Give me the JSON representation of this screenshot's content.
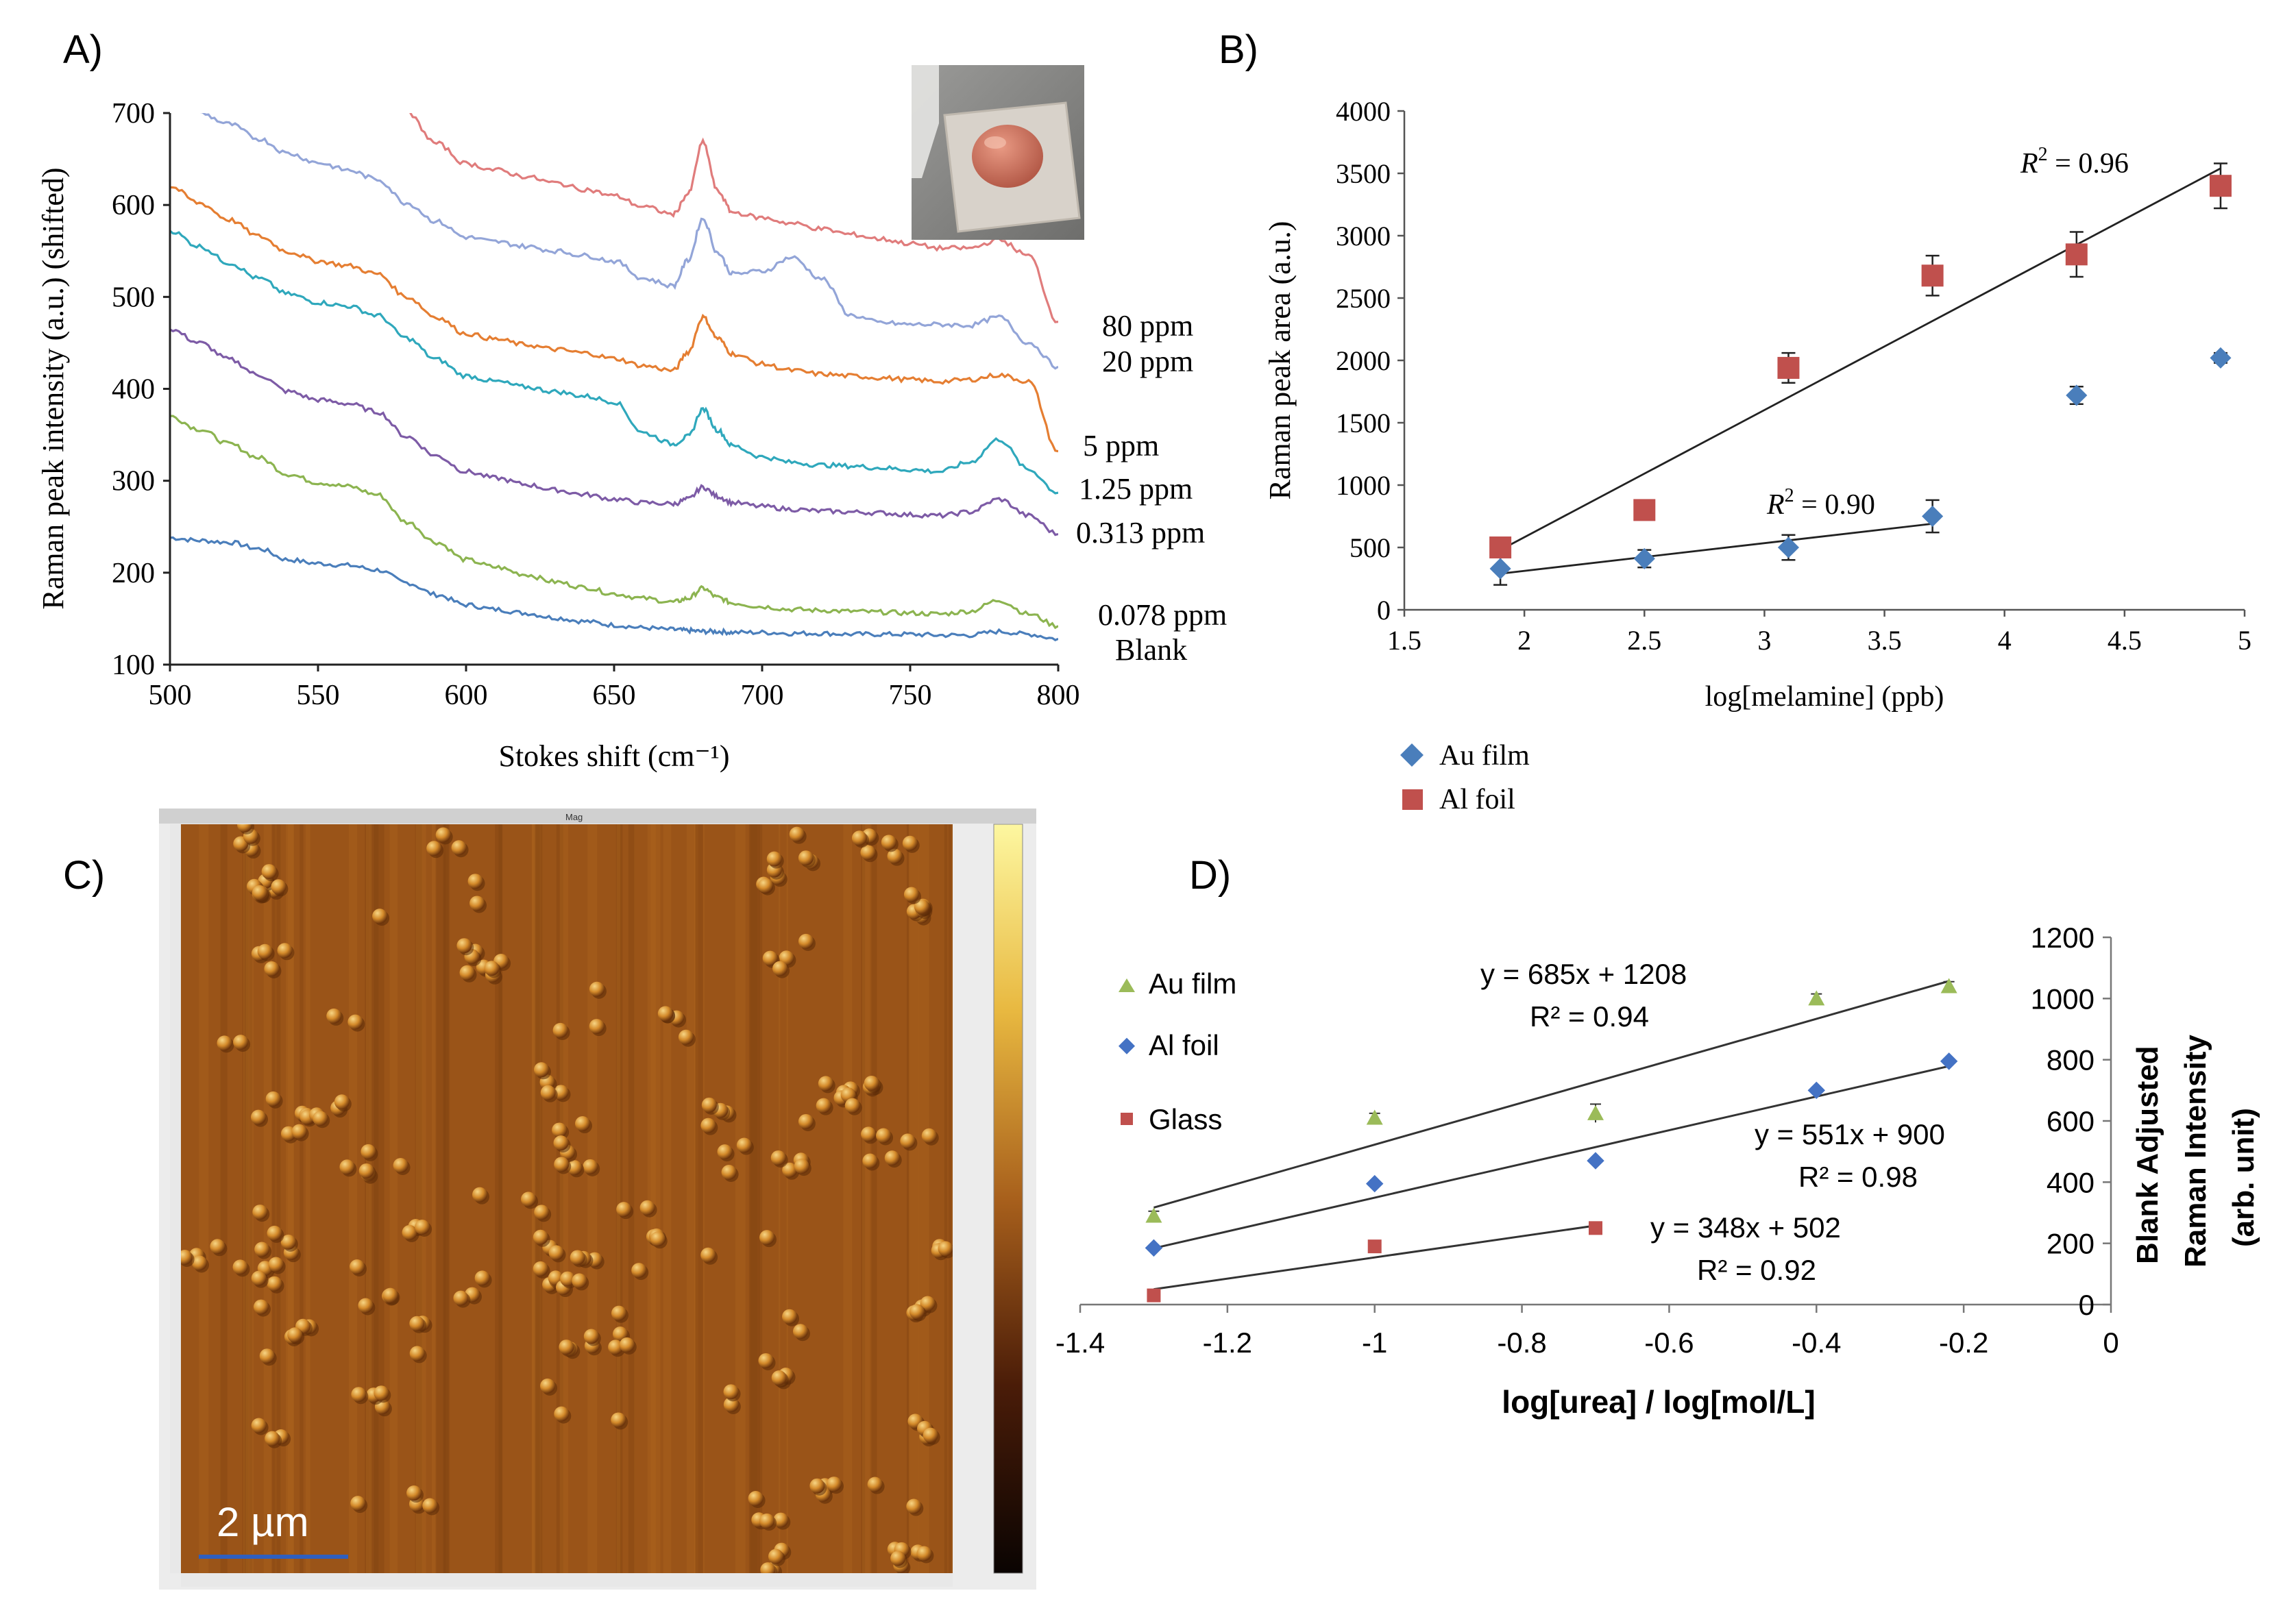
{
  "panels": {
    "a": "A)",
    "b": "B)",
    "c": "C)",
    "d": "D)"
  },
  "chart_data": [
    {
      "id": "A",
      "type": "line",
      "title": "",
      "xlabel": "Stokes shift (cm⁻¹)",
      "ylabel": "Raman peak intensity (a.u.) (shifted)",
      "xlim": [
        500,
        800
      ],
      "ylim": [
        100,
        700
      ],
      "xticks": [
        500,
        550,
        600,
        650,
        700,
        750,
        800
      ],
      "yticks": [
        100,
        200,
        300,
        400,
        500,
        600,
        700
      ],
      "x": [
        500,
        510,
        520,
        530,
        540,
        550,
        560,
        570,
        580,
        590,
        600,
        610,
        620,
        630,
        640,
        650,
        660,
        670,
        675,
        680,
        685,
        690,
        700,
        710,
        720,
        730,
        740,
        750,
        760,
        770,
        780,
        790,
        800
      ],
      "series": [
        {
          "name": "Blank",
          "color": "#4a7ebb",
          "values": [
            238,
            235,
            233,
            226,
            214,
            210,
            208,
            203,
            189,
            176,
            165,
            160,
            156,
            151,
            147,
            143,
            140,
            138,
            137,
            136,
            136,
            135,
            135,
            134,
            134,
            133,
            133,
            133,
            132,
            132,
            136,
            133,
            128
          ]
        },
        {
          "name": "0.078 ppm",
          "color": "#8cb450",
          "values": [
            370,
            356,
            340,
            325,
            307,
            298,
            294,
            285,
            255,
            233,
            214,
            206,
            198,
            190,
            184,
            177,
            172,
            168,
            172,
            183,
            173,
            167,
            163,
            160,
            159,
            158,
            157,
            156,
            155,
            158,
            170,
            155,
            142
          ]
        },
        {
          "name": "0.313 ppm",
          "color": "#7d5ba6",
          "values": [
            465,
            450,
            432,
            415,
            397,
            388,
            384,
            375,
            348,
            327,
            310,
            303,
            296,
            290,
            285,
            280,
            276,
            275,
            280,
            293,
            283,
            276,
            272,
            269,
            267,
            266,
            265,
            263,
            262,
            266,
            280,
            262,
            242
          ]
        },
        {
          "name": "1.25 ppm",
          "color": "#2fa8bc",
          "values": [
            572,
            555,
            537,
            520,
            503,
            494,
            490,
            480,
            455,
            432,
            414,
            408,
            402,
            397,
            392,
            386,
            352,
            340,
            348,
            378,
            355,
            338,
            326,
            320,
            317,
            316,
            314,
            312,
            310,
            320,
            345,
            312,
            287
          ]
        },
        {
          "name": "5 ppm",
          "color": "#e57e32",
          "values": [
            620,
            602,
            584,
            566,
            549,
            539,
            534,
            525,
            500,
            478,
            460,
            454,
            448,
            443,
            439,
            433,
            425,
            420,
            440,
            478,
            455,
            438,
            427,
            420,
            416,
            414,
            412,
            410,
            408,
            410,
            415,
            408,
            332
          ]
        },
        {
          "name": "20 ppm",
          "color": "#93a5d8",
          "values": [
            null,
            700,
            688,
            672,
            656,
            646,
            638,
            628,
            602,
            582,
            565,
            560,
            555,
            550,
            545,
            539,
            520,
            512,
            540,
            585,
            548,
            525,
            528,
            543,
            520,
            480,
            472,
            470,
            470,
            469,
            478,
            450,
            424
          ]
        },
        {
          "name": "80 ppm",
          "color": "#e07c7c",
          "values": [
            null,
            null,
            null,
            null,
            null,
            null,
            null,
            null,
            700,
            667,
            645,
            638,
            631,
            624,
            617,
            610,
            598,
            590,
            612,
            668,
            615,
            592,
            586,
            580,
            574,
            568,
            563,
            558,
            553,
            553,
            562,
            545,
            473
          ]
        }
      ],
      "series_labels": [
        "80 ppm",
        "20 ppm",
        "5 ppm",
        "1.25 ppm",
        "0.313 ppm",
        "0.078 ppm",
        "Blank"
      ]
    },
    {
      "id": "B",
      "type": "scatter",
      "title": "",
      "xlabel": "log[melamine] (ppb)",
      "ylabel": "Raman peak area (a.u.)",
      "xlim": [
        1.5,
        5
      ],
      "ylim": [
        0,
        4000
      ],
      "xticks": [
        1.5,
        2,
        2.5,
        3,
        3.5,
        4,
        4.5,
        5
      ],
      "yticks": [
        0,
        500,
        1000,
        1500,
        2000,
        2500,
        3000,
        3500,
        4000
      ],
      "legend_position": "bottom-left",
      "series": [
        {
          "name": "Au film",
          "color": "#4a7ebb",
          "marker": "diamond",
          "x": [
            1.9,
            2.5,
            3.1,
            3.7,
            4.3,
            4.9
          ],
          "values": [
            330,
            410,
            500,
            750,
            1720,
            2020
          ],
          "errors": [
            130,
            70,
            100,
            130,
            70,
            40
          ],
          "fit": {
            "x": [
              1.9,
              3.7
            ],
            "y": [
              290,
              690
            ],
            "r2_label": "R",
            "r2_sup": "2",
            "r2_value": " = 0.90"
          }
        },
        {
          "name": "Al foil",
          "color": "#c0504d",
          "marker": "square",
          "x": [
            1.9,
            2.5,
            3.1,
            3.7,
            4.3,
            4.9
          ],
          "values": [
            500,
            800,
            1940,
            2680,
            2850,
            3400
          ],
          "errors": [
            60,
            40,
            120,
            160,
            180,
            180
          ],
          "fit": {
            "x": [
              1.9,
              4.9
            ],
            "y": [
              480,
              3540
            ],
            "r2_label": "R",
            "r2_sup": "2",
            "r2_value": " = 0.96"
          }
        }
      ]
    },
    {
      "id": "D",
      "type": "scatter",
      "title": "",
      "xlabel": "log[urea] / log[mol/L]",
      "ylabel_line1": "Blank Adjusted",
      "ylabel_line2": "Raman Intensity",
      "ylabel_line3": "(arb. unit)",
      "xlim": [
        -1.4,
        0
      ],
      "ylim": [
        0,
        1200
      ],
      "xticks": [
        -1.4,
        -1.2,
        -1,
        -0.8,
        -0.6,
        -0.4,
        -0.2,
        0
      ],
      "xtick_labels": [
        "-1.4",
        "-1.2",
        "-1",
        "-0.8",
        "-0.6",
        "-0.4",
        "-0.2",
        "0"
      ],
      "yticks": [
        0,
        200,
        400,
        600,
        800,
        1000,
        1200
      ],
      "legend_position": "top-left",
      "series": [
        {
          "name": "Au film",
          "color": "#9bbb59",
          "marker": "triangle",
          "x": [
            -1.3,
            -1.0,
            -0.7,
            -0.4,
            -0.22
          ],
          "values": [
            290,
            610,
            625,
            1000,
            1040
          ],
          "errors": [
            15,
            15,
            30,
            15,
            15
          ],
          "fit": {
            "x": [
              -1.3,
              -0.22
            ],
            "y": [
              317,
              1057
            ]
          },
          "eq": "y = 685x + 1208",
          "r2": "R² = 0.94"
        },
        {
          "name": "Al foil",
          "color": "#4472c4",
          "marker": "diamond",
          "x": [
            -1.3,
            -1.0,
            -0.7,
            -0.4,
            -0.22
          ],
          "values": [
            185,
            395,
            470,
            700,
            795
          ],
          "errors": [
            8,
            8,
            8,
            8,
            8
          ],
          "fit": {
            "x": [
              -1.3,
              -0.22
            ],
            "y": [
              184,
              779
            ]
          },
          "eq": "y = 551x + 900",
          "r2": "R² = 0.98"
        },
        {
          "name": "Glass",
          "color": "#c0504d",
          "marker": "square",
          "x": [
            -1.3,
            -1.0,
            -0.7
          ],
          "values": [
            30,
            190,
            250
          ],
          "errors": [
            5,
            5,
            5
          ],
          "fit": {
            "x": [
              -1.3,
              -0.7
            ],
            "y": [
              50,
              258
            ]
          },
          "eq": "y = 348x + 502",
          "r2": "R² = 0.92"
        }
      ]
    }
  ],
  "panel_c": {
    "scale_bar_label": "2 µm",
    "header": "Mag",
    "colors": {
      "background": "#9a5418",
      "dot": "#d9922e",
      "dot_highlight": "#f5d07a",
      "dot_shadow": "#5a2a08",
      "scale_bar": "#2f5fbf"
    }
  },
  "photo_colors": {
    "background": "#8a8a88",
    "tile": "#d6d0c8",
    "droplet": "#c96a58"
  }
}
